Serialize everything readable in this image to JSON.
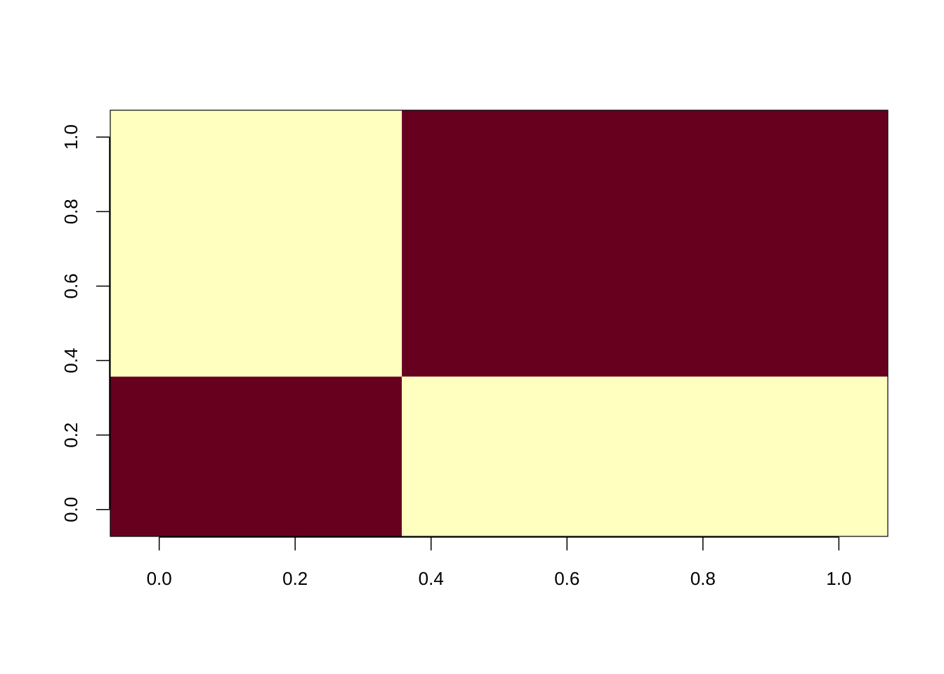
{
  "chart_data": {
    "type": "heatmap",
    "title": "",
    "xlabel": "",
    "ylabel": "",
    "x_ticks": [
      "0.0",
      "0.2",
      "0.4",
      "0.6",
      "0.8",
      "1.0"
    ],
    "y_ticks": [
      "0.0",
      "0.2",
      "0.4",
      "0.6",
      "0.8",
      "1.0"
    ],
    "xlim": [
      -0.072,
      1.072
    ],
    "ylim": [
      -0.072,
      1.072
    ],
    "x_breaks": [
      -0.072,
      0.357,
      1.072
    ],
    "y_breaks": [
      -0.072,
      0.357,
      1.072
    ],
    "cells": [
      [
        1,
        0
      ],
      [
        0,
        1
      ]
    ],
    "colors": {
      "0": "#FFFFBF",
      "1": "#67001F"
    },
    "grid": false,
    "legend": "none"
  }
}
